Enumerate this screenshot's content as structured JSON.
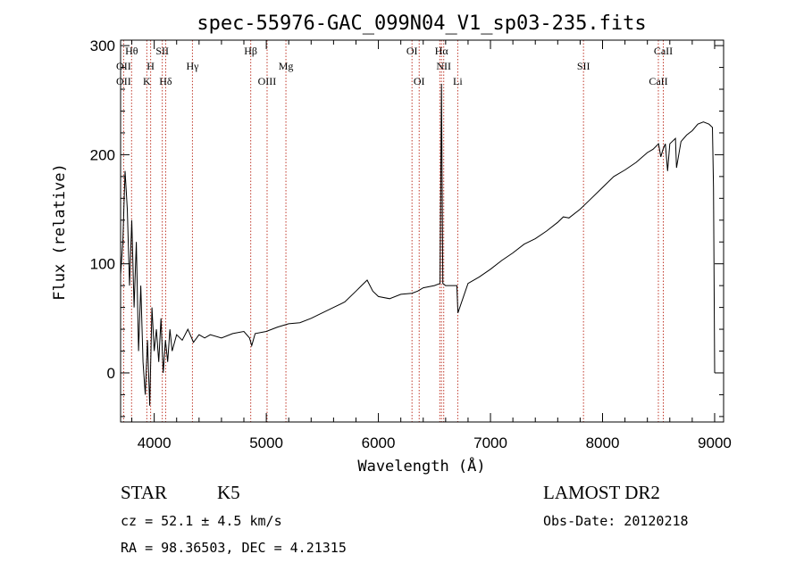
{
  "chart_data": {
    "type": "line",
    "title": "spec-55976-GAC_099N04_V1_sp03-235.fits",
    "xlabel": "Wavelength (Å)",
    "ylabel": "Flux (relative)",
    "xlim": [
      3700,
      9080
    ],
    "ylim": [
      -45,
      305
    ],
    "xticks": [
      4000,
      5000,
      6000,
      7000,
      8000,
      9000
    ],
    "yticks": [
      0,
      100,
      200,
      300
    ],
    "grid": false,
    "series": [
      {
        "x": [
          3700,
          3720,
          3740,
          3760,
          3780,
          3800,
          3820,
          3840,
          3860,
          3880,
          3900,
          3920,
          3940,
          3960,
          3980,
          4000,
          4020,
          4040,
          4060,
          4080,
          4100,
          4120,
          4140,
          4160,
          4200,
          4250,
          4300,
          4350,
          4400,
          4450,
          4500,
          4600,
          4700,
          4800,
          4850,
          4870,
          4900,
          5000,
          5100,
          5200,
          5300,
          5400,
          5500,
          5600,
          5700,
          5800,
          5850,
          5900,
          5950,
          6000,
          6100,
          6200,
          6300,
          6350,
          6400,
          6500,
          6550,
          6563,
          6575,
          6600,
          6700,
          6710,
          6800,
          6900,
          7000,
          7100,
          7200,
          7300,
          7400,
          7500,
          7600,
          7650,
          7700,
          7800,
          7900,
          8000,
          8100,
          8200,
          8300,
          8400,
          8450,
          8500,
          8520,
          8540,
          8560,
          8580,
          8600,
          8650,
          8660,
          8700,
          8750,
          8800,
          8850,
          8900,
          8950,
          8980,
          8990,
          9000
        ],
        "y": [
          90,
          120,
          185,
          150,
          80,
          140,
          60,
          120,
          20,
          80,
          10,
          -20,
          30,
          -30,
          60,
          20,
          40,
          10,
          50,
          0,
          30,
          10,
          40,
          20,
          35,
          30,
          40,
          28,
          35,
          32,
          35,
          32,
          36,
          38,
          32,
          25,
          36,
          38,
          42,
          45,
          46,
          50,
          55,
          60,
          65,
          75,
          80,
          85,
          75,
          70,
          68,
          72,
          73,
          75,
          78,
          80,
          82,
          265,
          82,
          80,
          80,
          55,
          82,
          88,
          95,
          103,
          110,
          118,
          123,
          130,
          138,
          143,
          142,
          150,
          160,
          170,
          180,
          186,
          193,
          202,
          205,
          210,
          198,
          205,
          210,
          185,
          210,
          215,
          188,
          212,
          218,
          222,
          228,
          230,
          228,
          225,
          170,
          0
        ]
      }
    ],
    "line_markers": [
      {
        "label": "Hθ",
        "wave": 3798,
        "row": 1
      },
      {
        "label": "OII",
        "wave": 3727,
        "row": 2
      },
      {
        "label": "OII",
        "wave": 3727,
        "row": 3
      },
      {
        "label": "SII",
        "wave": 4072,
        "row": 1
      },
      {
        "label": "H",
        "wave": 3968,
        "row": 2
      },
      {
        "label": "K",
        "wave": 3934,
        "row": 3
      },
      {
        "label": "Hδ",
        "wave": 4102,
        "row": 3
      },
      {
        "label": "Hγ",
        "wave": 4341,
        "row": 2
      },
      {
        "label": "Hβ",
        "wave": 4861,
        "row": 1
      },
      {
        "label": "Mg",
        "wave": 5175,
        "row": 2
      },
      {
        "label": "OIII",
        "wave": 5007,
        "row": 3
      },
      {
        "label": "OI",
        "wave": 6300,
        "row": 1
      },
      {
        "label": "OI",
        "wave": 6364,
        "row": 3
      },
      {
        "label": "Hα",
        "wave": 6563,
        "row": 1
      },
      {
        "label": "NII",
        "wave": 6583,
        "row": 2
      },
      {
        "label": "Li",
        "wave": 6708,
        "row": 3
      },
      {
        "label": "SII",
        "wave": 7830,
        "row": 2
      },
      {
        "label": "CaII",
        "wave": 8542,
        "row": 1
      },
      {
        "label": "CaII",
        "wave": 8498,
        "row": 3
      }
    ],
    "marker_waves": [
      3727,
      3798,
      3934,
      3968,
      4072,
      4102,
      4341,
      4861,
      5007,
      5175,
      6300,
      6364,
      6548,
      6563,
      6583,
      6708,
      7830,
      8498,
      8542
    ]
  },
  "info": {
    "class": "STAR",
    "subclass": "K5",
    "survey": "LAMOST DR2",
    "cz": "cz = 52.1 ± 4.5 km/s",
    "obs_date": "Obs-Date: 20120218",
    "radec": "RA =  98.36503, DEC =   4.21315"
  }
}
